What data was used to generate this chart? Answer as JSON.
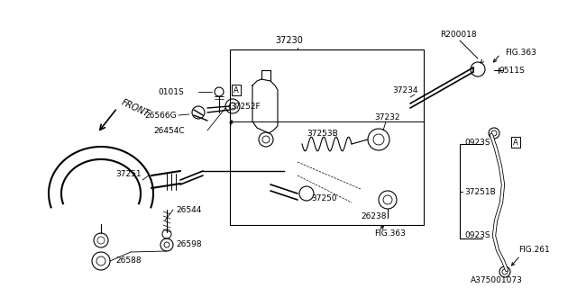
{
  "bg_color": "#ffffff",
  "line_color": "#000000",
  "diagram_id": "A375001073",
  "front_text": "FRONT",
  "label_37230": "37230",
  "label_R200018": "R200018",
  "label_FIG363_top": "FIG.363",
  "label_0511S": "0511S",
  "label_37234": "37234",
  "label_37232": "37232",
  "label_37253B": "37253B",
  "label_0101S": "0101S",
  "label_26566G": "26566G",
  "label_37252F": "37252F",
  "label_26454C": "26454C",
  "label_37251": "37251",
  "label_26544": "26544",
  "label_26598": "26598",
  "label_26588": "26588",
  "label_37250": "37250",
  "label_26238": "26238",
  "label_FIG363_bot": "FIG.363",
  "label_0923S_top": "0923S",
  "label_A_right": "A",
  "label_37251B": "37251B",
  "label_0923S_bot": "0923S",
  "label_FIG261": "FIG.261",
  "label_A_center": "A"
}
